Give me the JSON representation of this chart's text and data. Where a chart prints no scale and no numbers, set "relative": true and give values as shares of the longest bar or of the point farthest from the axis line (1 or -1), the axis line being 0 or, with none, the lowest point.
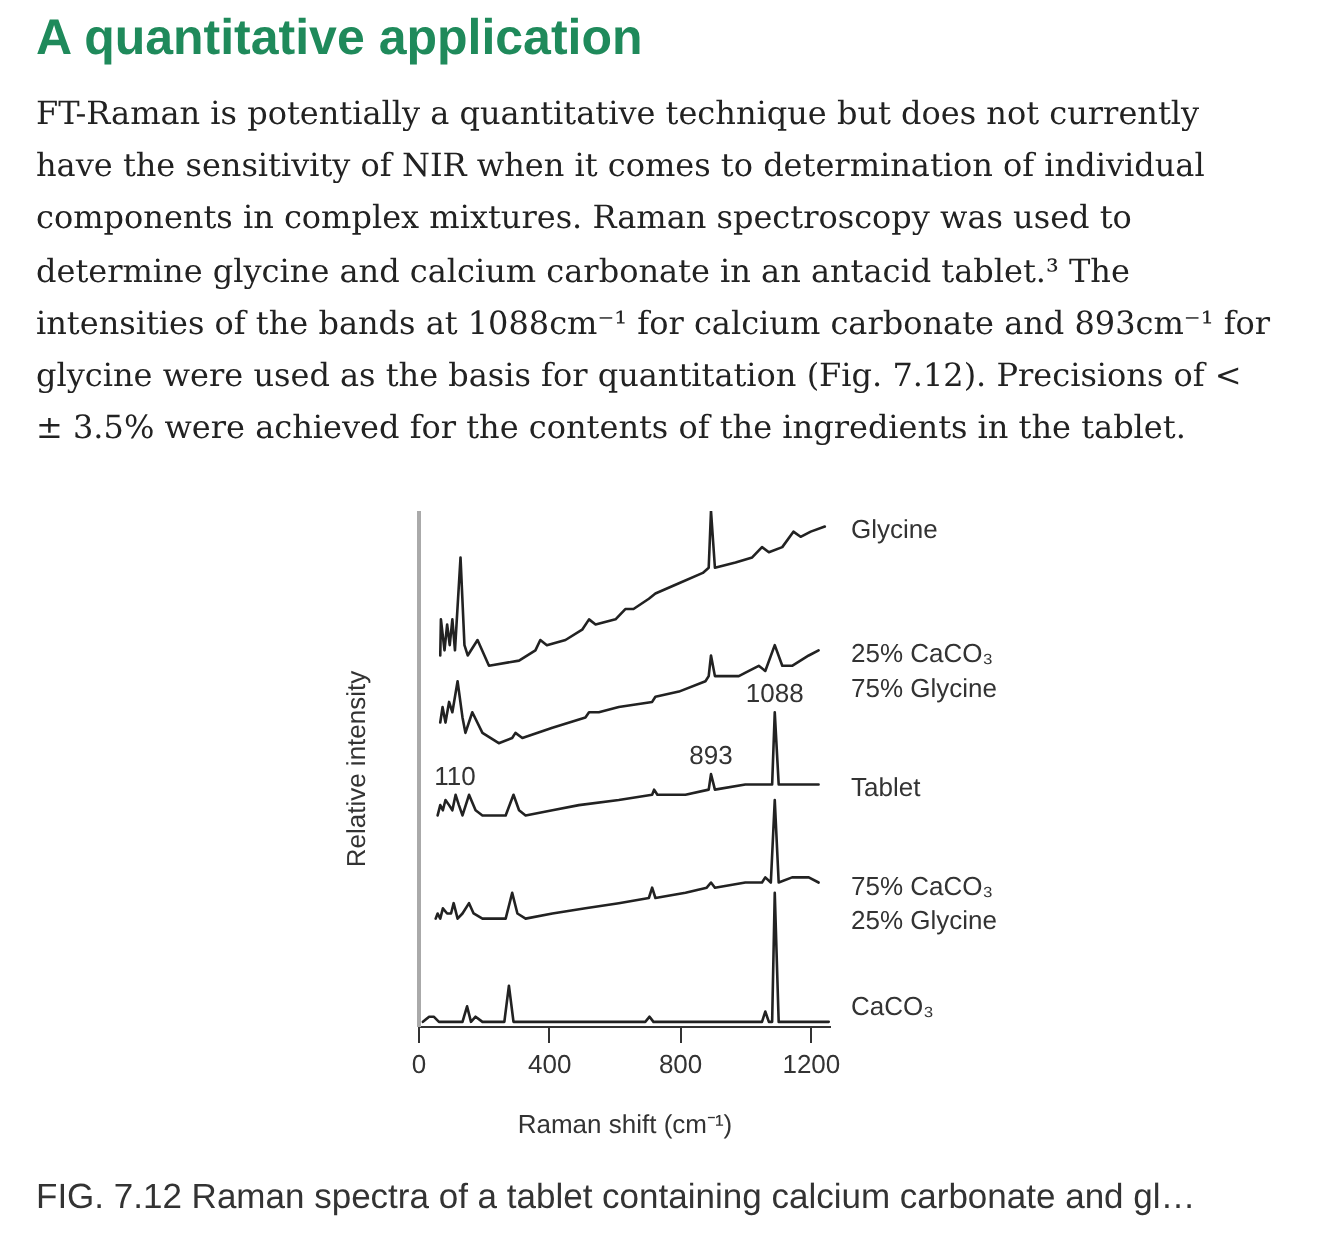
{
  "chart_data": {
    "type": "line",
    "title": "A quantitative application",
    "subtitle": "FT-Raman is potentially a quantitative technique but does not currently\nhave the sensitivity of NIR when it comes to determination of individual\ncomponents in complex mixtures. Raman spectroscopy was used to\ndetermine glycine and calcium carbonate in an antacid tablet.³ The\nintensities of the bands at 1088cm⁻¹ for calcium carbonate and 893cm⁻¹ for\nglycine were used as the basis for quantitation (Fig. 7.12). Precisions of <\n± 3.5% were achieved for the contents of the ingredients in the tablet.",
    "xlabel": "Raman shift (cm⁻¹)",
    "ylabel": "Relative intensity",
    "relative": true,
    "xlim": [
      0,
      1260
    ],
    "xticks": [
      0,
      400,
      800,
      1200
    ],
    "series": [
      {
        "name": "Glycine",
        "color": "#222222",
        "x": [
          65,
          67,
          78,
          86,
          94,
          102,
          110,
          127,
          139,
          149,
          179,
          214,
          306,
          356,
          371,
          391,
          448,
          499,
          520,
          540,
          601,
          631,
          656,
          703,
          723,
          795,
          868,
          886,
          893,
          905,
          968,
          1019,
          1049,
          1070,
          1111,
          1145,
          1167,
          1198,
          1241
        ],
        "values": [
          0.72,
          0.79,
          0.73,
          0.78,
          0.74,
          0.79,
          0.73,
          0.91,
          0.74,
          0.72,
          0.75,
          0.7,
          0.71,
          0.73,
          0.75,
          0.74,
          0.75,
          0.77,
          0.79,
          0.78,
          0.79,
          0.81,
          0.81,
          0.83,
          0.84,
          0.86,
          0.88,
          0.89,
          1.0,
          0.89,
          0.9,
          0.91,
          0.93,
          0.92,
          0.93,
          0.96,
          0.95,
          0.96,
          0.97
        ]
      },
      {
        "name": "25% CaCO₃\n75% Glycine",
        "color": "#222222",
        "x": [
          65,
          72,
          81,
          92,
          102,
          118,
          133,
          142,
          163,
          194,
          244,
          285,
          295,
          316,
          408,
          509,
          520,
          550,
          611,
          713,
          723,
          795,
          876,
          886,
          893,
          905,
          978,
          1009,
          1039,
          1059,
          1088,
          1111,
          1141,
          1192,
          1222
        ],
        "values": [
          0.59,
          0.62,
          0.59,
          0.63,
          0.61,
          0.67,
          0.6,
          0.57,
          0.61,
          0.57,
          0.55,
          0.56,
          0.57,
          0.56,
          0.58,
          0.6,
          0.61,
          0.61,
          0.62,
          0.63,
          0.64,
          0.65,
          0.67,
          0.68,
          0.72,
          0.68,
          0.68,
          0.69,
          0.7,
          0.69,
          0.74,
          0.7,
          0.7,
          0.72,
          0.73
        ]
      },
      {
        "name": "Tablet",
        "color": "#222222",
        "x": [
          57,
          65,
          73,
          81,
          92,
          102,
          112,
          122,
          133,
          153,
          173,
          194,
          265,
          289,
          306,
          326,
          408,
          489,
          611,
          713,
          719,
          729,
          815,
          886,
          893,
          905,
          998,
          1049,
          1080,
          1088,
          1100,
          1141,
          1192,
          1222
        ],
        "values": [
          0.41,
          0.43,
          0.42,
          0.44,
          0.43,
          0.42,
          0.45,
          0.43,
          0.41,
          0.45,
          0.42,
          0.41,
          0.41,
          0.45,
          0.42,
          0.41,
          0.42,
          0.43,
          0.44,
          0.45,
          0.46,
          0.45,
          0.45,
          0.46,
          0.49,
          0.46,
          0.47,
          0.47,
          0.47,
          0.61,
          0.47,
          0.47,
          0.47,
          0.47
        ]
      },
      {
        "name": "75% CaCO₃\n25% Glycine",
        "color": "#222222",
        "x": [
          51,
          57,
          65,
          73,
          86,
          98,
          106,
          118,
          133,
          153,
          167,
          194,
          265,
          285,
          301,
          326,
          408,
          509,
          611,
          703,
          713,
          723,
          815,
          880,
          893,
          905,
          998,
          1049,
          1059,
          1076,
          1088,
          1100,
          1141,
          1192,
          1222
        ],
        "values": [
          0.21,
          0.22,
          0.21,
          0.23,
          0.22,
          0.22,
          0.24,
          0.21,
          0.22,
          0.24,
          0.22,
          0.21,
          0.21,
          0.26,
          0.22,
          0.21,
          0.22,
          0.23,
          0.24,
          0.25,
          0.27,
          0.25,
          0.26,
          0.27,
          0.28,
          0.27,
          0.28,
          0.28,
          0.29,
          0.28,
          0.44,
          0.28,
          0.29,
          0.29,
          0.28
        ]
      },
      {
        "name": "CaCO₃",
        "color": "#222222",
        "x": [
          12,
          31,
          45,
          61,
          133,
          147,
          159,
          173,
          194,
          261,
          275,
          289,
          692,
          705,
          717,
          1049,
          1059,
          1070,
          1080,
          1088,
          1100,
          1192,
          1253
        ],
        "values": [
          0.01,
          0.02,
          0.02,
          0.01,
          0.01,
          0.04,
          0.01,
          0.02,
          0.01,
          0.01,
          0.08,
          0.01,
          0.01,
          0.02,
          0.01,
          0.01,
          0.03,
          0.01,
          0.01,
          0.26,
          0.01,
          0.01,
          0.01
        ]
      }
    ],
    "annotations": [
      {
        "text": "1088",
        "x": 1088,
        "y": 0.61
      },
      {
        "text": "893",
        "x": 893,
        "y": 0.49
      },
      {
        "text": "110",
        "x": 110,
        "y": 0.45
      },
      "FIG. 7.12 Raman spectra of a tablet containing calcium carbonate and gl…"
    ]
  }
}
